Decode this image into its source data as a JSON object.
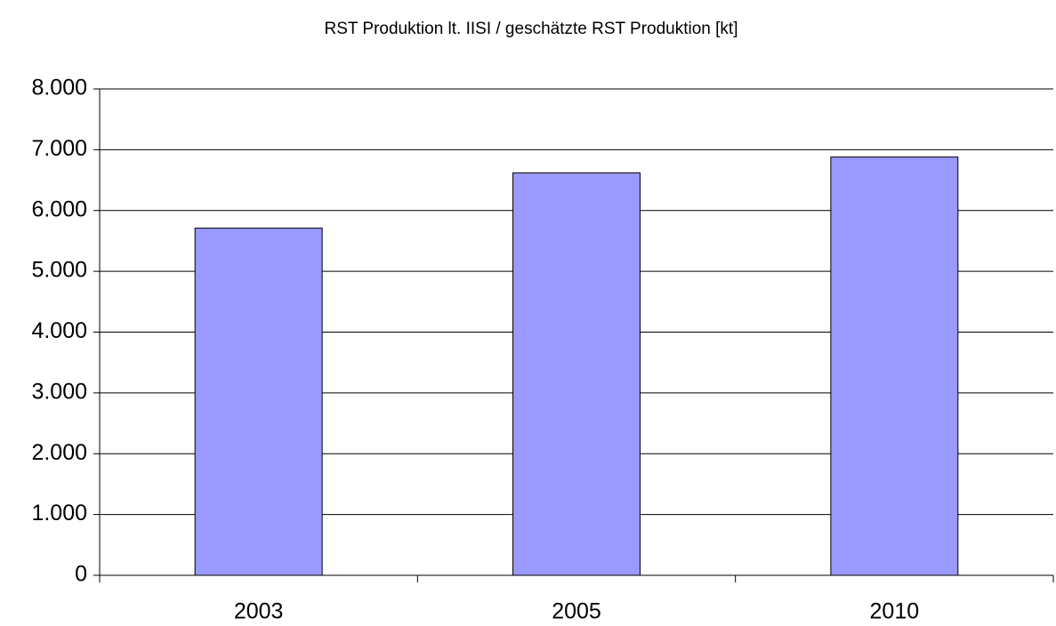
{
  "chart_data": {
    "type": "bar",
    "title": "RST Produktion lt. IISI / geschätzte RST Produktion [kt]",
    "categories": [
      "2003",
      "2005",
      "2010"
    ],
    "values": [
      5710,
      6620,
      6880
    ],
    "color": "#9999ff",
    "ylim": [
      0,
      8000
    ],
    "yticks": [
      0,
      {
        "value": 1000,
        "label": "1.000"
      },
      {
        "value": 2000,
        "label": "2.000"
      },
      {
        "value": 3000,
        "label": "3.000"
      },
      {
        "value": 4000,
        "label": "4.000"
      },
      {
        "value": 5000,
        "label": "5.000"
      },
      {
        "value": 6000,
        "label": "6.000"
      },
      {
        "value": 7000,
        "label": "7.000"
      },
      {
        "value": 8000,
        "label": "8.000"
      }
    ],
    "grid": true
  }
}
